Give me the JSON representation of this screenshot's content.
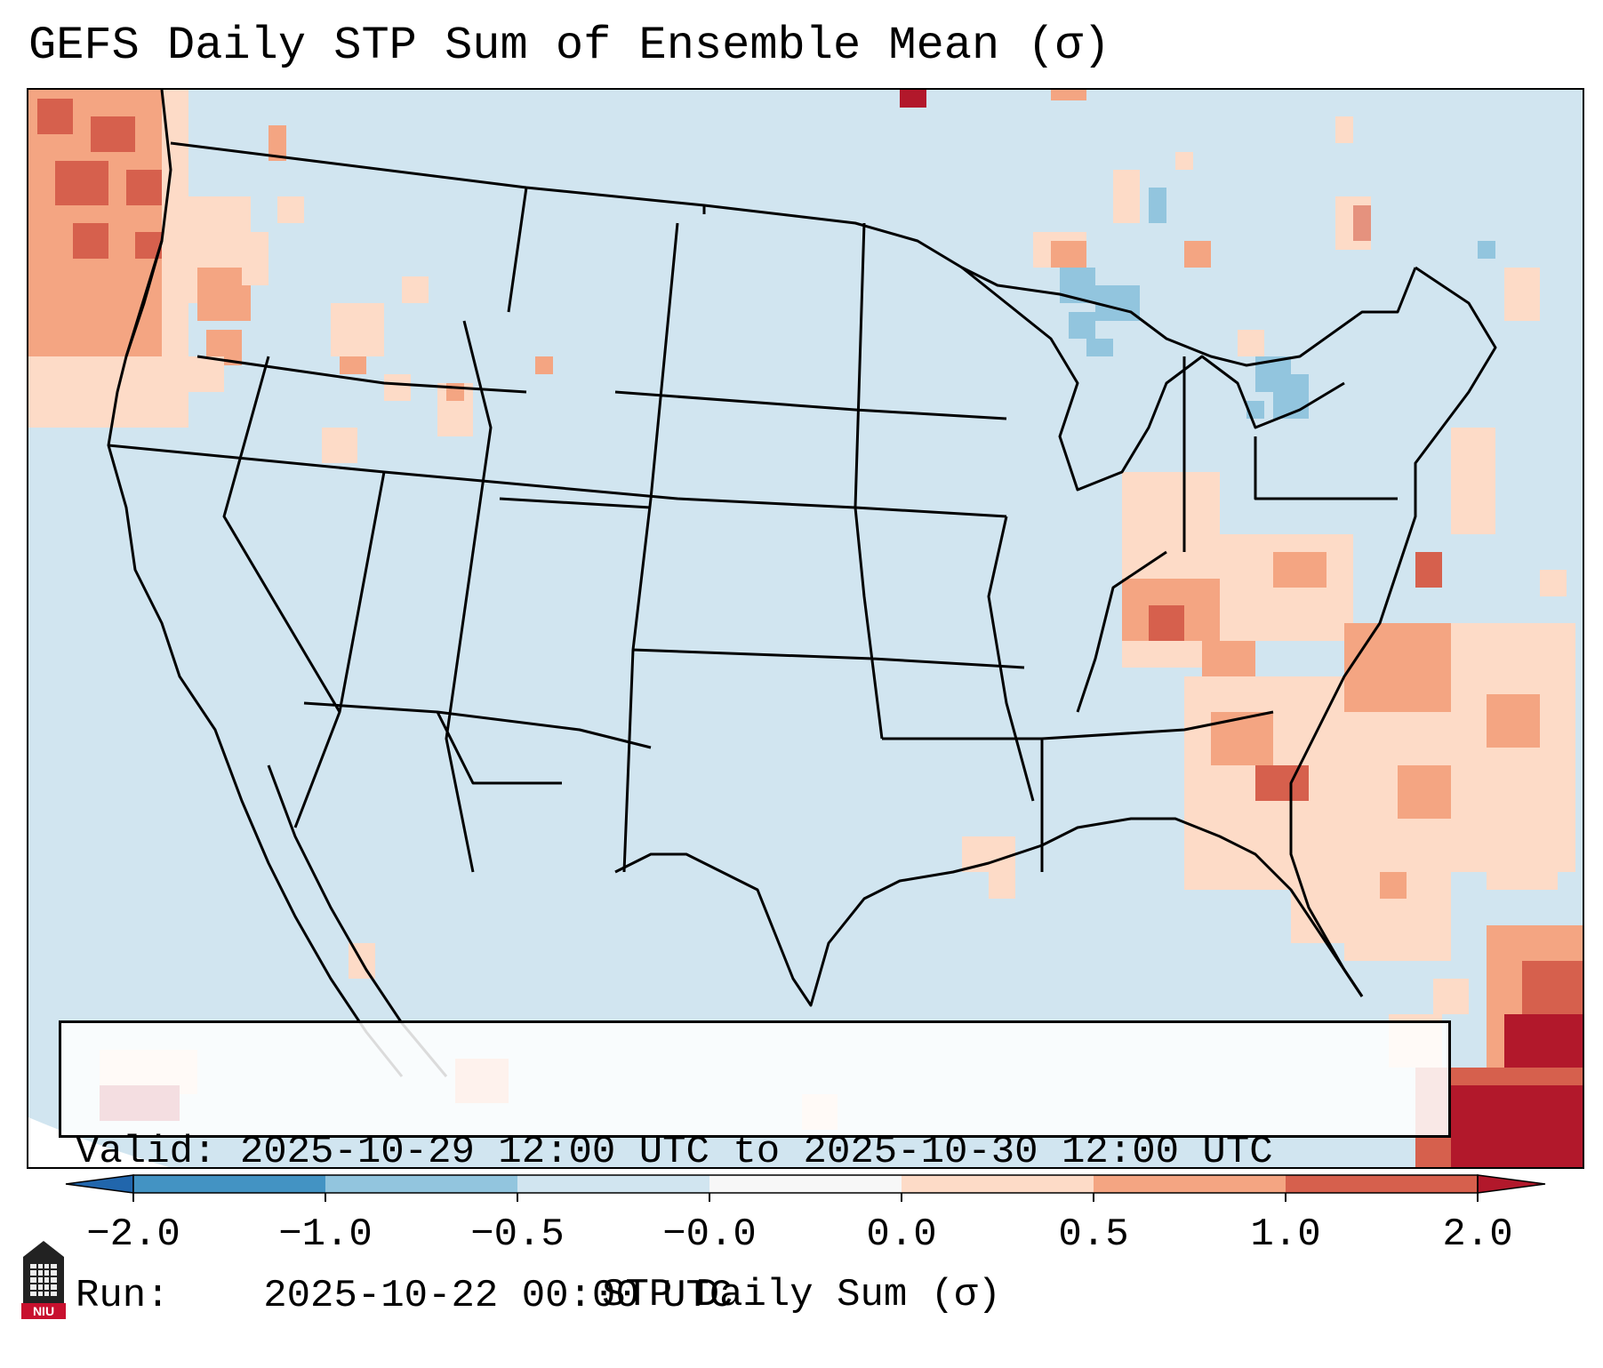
{
  "title": "GEFS Daily STP Sum of Ensemble Mean (σ)",
  "info_box": {
    "valid_label": "Valid:",
    "valid_value": "2025-10-29 12:00 UTC to 2025-10-30 12:00 UTC",
    "run_label": "Run:",
    "run_value": "2025-10-22 00:00 UTC"
  },
  "colorbar": {
    "label": "STP Daily Sum (σ)",
    "ticks": [
      "−2.0",
      "−1.0",
      "−0.5",
      "−0.0",
      "0.0",
      "0.5",
      "1.0",
      "2.0"
    ],
    "bins": [
      {
        "color": "#2166ac"
      },
      {
        "color": "#4393c3"
      },
      {
        "color": "#92c5de"
      },
      {
        "color": "#d1e5f0"
      },
      {
        "color": "#f7f7f7"
      },
      {
        "color": "#fddbc7"
      },
      {
        "color": "#f4a582"
      },
      {
        "color": "#d6604d"
      },
      {
        "color": "#b2182b"
      }
    ],
    "extend": "both"
  },
  "colors": {
    "background_bin": "#d1e5f0",
    "border": "#000000"
  },
  "logo": {
    "text": "NIU"
  }
}
